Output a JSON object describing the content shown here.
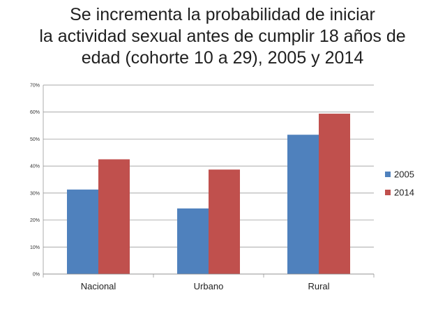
{
  "title_lines": [
    "Se incrementa la probabilidad de iniciar",
    "la actividad sexual antes de cumplir 18 años de",
    "edad (cohorte 10 a 29), 2005 y 2014"
  ],
  "colors": {
    "series_2005": "#4F81BD",
    "series_2014": "#C0504D",
    "grid": "#8c8c8c"
  },
  "chart_data": {
    "type": "bar",
    "title": "Se incrementa la probabilidad de iniciar la actividad sexual antes de cumplir 18 años de edad (cohorte 10 a 29), 2005 y 2014",
    "categories": [
      "Nacional",
      "Urbano",
      "Rural"
    ],
    "series": [
      {
        "name": "2005",
        "values": [
          31.3,
          24.3,
          51.6
        ]
      },
      {
        "name": "2014",
        "values": [
          42.5,
          38.7,
          59.4
        ]
      }
    ],
    "ylim": [
      0,
      70
    ],
    "yticks": [
      0,
      10,
      20,
      30,
      40,
      50,
      60,
      70
    ],
    "ytick_labels": [
      "0%",
      "10%",
      "20%",
      "30%",
      "40%",
      "50%",
      "60%",
      "70%"
    ],
    "grid": true,
    "legend": "right"
  }
}
